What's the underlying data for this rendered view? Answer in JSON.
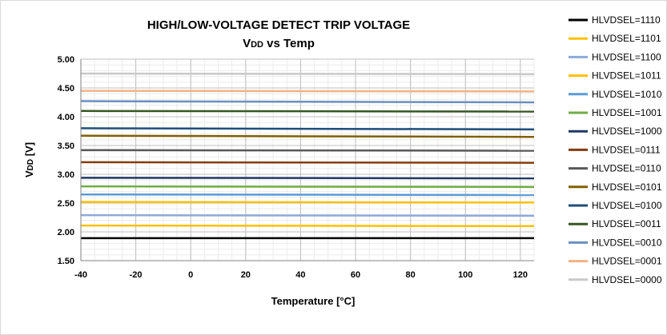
{
  "chart_data": {
    "type": "line",
    "title": "HIGH/LOW-VOLTAGE DETECT TRIP VOLTAGE",
    "subtitle_main": "V",
    "subtitle_sub": "DD",
    "subtitle_rest": " vs Temp",
    "xlabel": "Temperature [°C]",
    "ylabel_main": "V",
    "ylabel_sub": "DD",
    "ylabel_rest": " [V]",
    "xlim": [
      -40,
      125
    ],
    "ylim": [
      1.5,
      5.0
    ],
    "xticks": [
      -40,
      -20,
      0,
      20,
      40,
      60,
      80,
      100,
      120
    ],
    "xtick_labels": [
      "-40",
      "-20",
      "0",
      "20",
      "40",
      "60",
      "80",
      "100",
      "120"
    ],
    "yticks": [
      1.5,
      2.0,
      2.5,
      3.0,
      3.5,
      4.0,
      4.5,
      5.0
    ],
    "ytick_labels": [
      "1.50",
      "2.00",
      "2.50",
      "3.00",
      "3.50",
      "4.00",
      "4.50",
      "5.00"
    ],
    "grid": true,
    "legend_position": "right",
    "x": [
      -40,
      125
    ],
    "series": [
      {
        "name": "HLVDSEL=1110",
        "color": "#000000",
        "values": [
          1.89,
          1.89
        ]
      },
      {
        "name": "HLVDSEL=1101",
        "color": "#ffc000",
        "values": [
          2.11,
          2.1
        ]
      },
      {
        "name": "HLVDSEL=1100",
        "color": "#8eaadb",
        "values": [
          2.29,
          2.28
        ]
      },
      {
        "name": "HLVDSEL=1011",
        "color": "#ffc000",
        "values": [
          2.52,
          2.51
        ]
      },
      {
        "name": "HLVDSEL=1010",
        "color": "#5b9bd5",
        "values": [
          2.65,
          2.64
        ]
      },
      {
        "name": "HLVDSEL=1001",
        "color": "#70ad47",
        "values": [
          2.79,
          2.78
        ]
      },
      {
        "name": "HLVDSEL=1000",
        "color": "#203864",
        "values": [
          2.94,
          2.93
        ]
      },
      {
        "name": "HLVDSEL=0111",
        "color": "#843c0c",
        "values": [
          3.21,
          3.2
        ]
      },
      {
        "name": "HLVDSEL=0110",
        "color": "#595959",
        "values": [
          3.42,
          3.41
        ]
      },
      {
        "name": "HLVDSEL=0101",
        "color": "#806000",
        "values": [
          3.67,
          3.65
        ]
      },
      {
        "name": "HLVDSEL=0100",
        "color": "#1f4e79",
        "values": [
          3.8,
          3.78
        ]
      },
      {
        "name": "HLVDSEL=0011",
        "color": "#375623",
        "values": [
          4.1,
          4.09
        ]
      },
      {
        "name": "HLVDSEL=0010",
        "color": "#6a8fc0",
        "values": [
          4.27,
          4.25
        ]
      },
      {
        "name": "HLVDSEL=0001",
        "color": "#f4b183",
        "values": [
          4.45,
          4.44
        ]
      },
      {
        "name": "HLVDSEL=0000",
        "color": "#c9c9c9",
        "values": [
          4.75,
          4.74
        ]
      }
    ]
  }
}
